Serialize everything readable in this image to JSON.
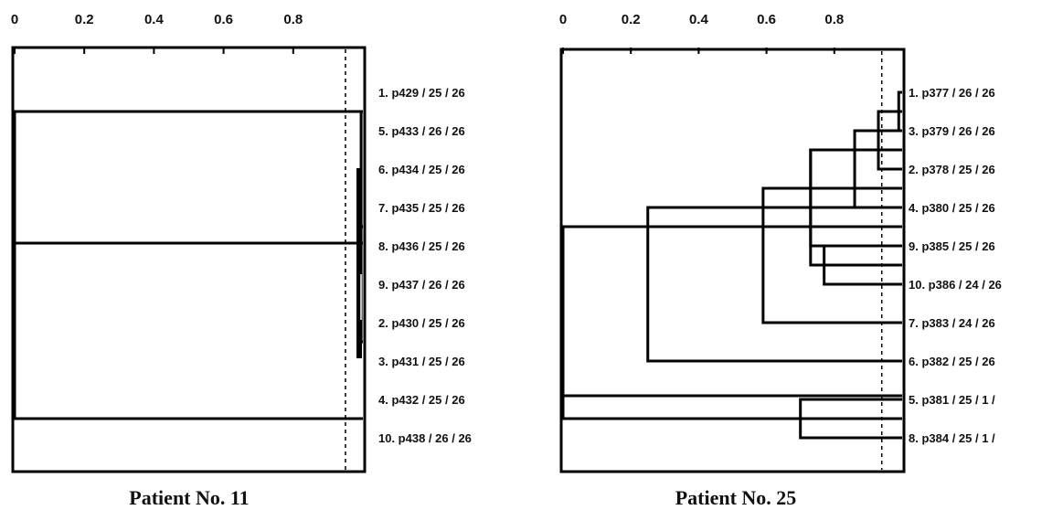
{
  "panels": [
    {
      "caption": "Patient No. 11",
      "tick_labels": [
        "0",
        "0.2",
        "0.4",
        "0.6",
        "0.8"
      ],
      "tick_values": [
        0,
        0.2,
        0.4,
        0.6,
        0.8
      ],
      "axis_range": [
        0,
        1
      ],
      "cutoff": 0.95,
      "leaves": [
        "1. p429 / 25 / 26",
        "5. p433 / 26 / 26",
        "6. p434 / 25 / 26",
        "7. p435 / 25 / 26",
        "8. p436 / 25 / 26",
        "9. p437 / 26 / 26",
        "2. p430 / 25 / 26",
        "3. p431 / 25 / 26",
        "4. p432 / 25 / 26",
        "10. p438 / 26 / 26"
      ],
      "merges": [
        {
          "left": [
            0,
            1
          ],
          "right": [
            2,
            5
          ],
          "height": 0.995
        },
        {
          "left": [
            2,
            5
          ],
          "right": [
            6,
            7
          ],
          "height": 0.995
        },
        {
          "left": [
            0,
            1
          ],
          "right": [
            8,
            9
          ],
          "height": 0.0
        }
      ]
    },
    {
      "caption": "Patient No. 25",
      "tick_labels": [
        "0",
        "0.2",
        "0.4",
        "0.6",
        "0.8"
      ],
      "tick_values": [
        0,
        0.2,
        0.4,
        0.6,
        0.8
      ],
      "axis_range": [
        0,
        1
      ],
      "cutoff": 0.94,
      "leaves": [
        "1. p377 / 26 / 26",
        "3. p379 / 26 / 26",
        "2. p378 / 25 / 26",
        "4. p380 / 25 / 26",
        "9. p385 / 25 / 26",
        "10. p386 / 24 / 26",
        "7. p383 / 24 / 26",
        "6. p382 / 25 / 26",
        "5. p381 / 25 / 1 /",
        "8. p384 / 25 / 1 /"
      ],
      "merges": [
        {
          "left": [
            0,
            0
          ],
          "right": [
            1,
            1
          ],
          "height": 0.99
        },
        {
          "left": [
            0,
            1
          ],
          "right": [
            2,
            2
          ],
          "height": 0.93
        },
        {
          "left": [
            0,
            2
          ],
          "right": [
            3,
            3
          ],
          "height": 0.86
        },
        {
          "left": [
            0,
            3
          ],
          "right": [
            4,
            4
          ],
          "height": 0.73
        },
        {
          "left": [
            4,
            4
          ],
          "right": [
            5,
            5
          ],
          "height": 0.77
        },
        {
          "left": [
            0,
            3
          ],
          "right": [
            4,
            5
          ],
          "height": 0.73
        },
        {
          "left": [
            0,
            5
          ],
          "right": [
            6,
            6
          ],
          "height": 0.59
        },
        {
          "left": [
            0,
            6
          ],
          "right": [
            7,
            7
          ],
          "height": 0.25
        },
        {
          "left": [
            8,
            8
          ],
          "right": [
            9,
            9
          ],
          "height": 0.7
        },
        {
          "left": [
            0,
            7
          ],
          "right": [
            8,
            9
          ],
          "height": 0.0
        }
      ]
    }
  ]
}
